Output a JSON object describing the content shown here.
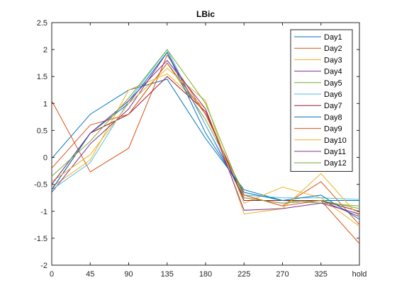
{
  "chart_data": {
    "type": "line",
    "title": "LBic",
    "xlabel": "",
    "ylabel": "",
    "categories": [
      "0",
      "45",
      "90",
      "135",
      "180",
      "225",
      "270",
      "325",
      "hold"
    ],
    "ylim": [
      -2,
      2.5
    ],
    "yticks": [
      "-2",
      "-1.5",
      "-1",
      "-0.5",
      "0",
      "0.5",
      "1",
      "1.5",
      "2",
      "2.5"
    ],
    "grid": false,
    "legend_position": "top-right",
    "series": [
      {
        "name": "Day1",
        "color": "#0072BD",
        "values": [
          -0.02,
          0.8,
          1.25,
          1.45,
          0.35,
          -0.6,
          -0.8,
          -0.8,
          -0.8
        ]
      },
      {
        "name": "Day2",
        "color": "#D95319",
        "values": [
          1.05,
          -0.27,
          0.17,
          1.9,
          0.8,
          -0.7,
          -0.9,
          -0.45,
          -1.25
        ]
      },
      {
        "name": "Day3",
        "color": "#EDB120",
        "values": [
          -0.55,
          -0.05,
          1.25,
          1.55,
          0.9,
          -0.85,
          -0.55,
          -0.75,
          -1.28
        ]
      },
      {
        "name": "Day4",
        "color": "#7E2F8E",
        "values": [
          -0.65,
          0.25,
          0.9,
          1.95,
          0.6,
          -0.75,
          -0.85,
          -0.8,
          -1.1
        ]
      },
      {
        "name": "Day5",
        "color": "#77AC30",
        "values": [
          -0.5,
          0.45,
          0.8,
          1.75,
          0.7,
          -0.65,
          -0.8,
          -0.85,
          -0.9
        ]
      },
      {
        "name": "Day6",
        "color": "#4DBEEE",
        "values": [
          -0.6,
          -0.1,
          1.05,
          2.0,
          0.6,
          -0.7,
          -0.75,
          -0.75,
          -0.78
        ]
      },
      {
        "name": "Day7",
        "color": "#A2142F",
        "values": [
          -0.6,
          0.45,
          0.8,
          1.5,
          0.85,
          -0.8,
          -0.8,
          -0.8,
          -1.0
        ]
      },
      {
        "name": "Day8",
        "color": "#0072BD",
        "values": [
          -0.6,
          0.45,
          1.0,
          1.95,
          0.45,
          -0.65,
          -0.8,
          -0.7,
          -1.15
        ]
      },
      {
        "name": "Day9",
        "color": "#D95319",
        "values": [
          -0.2,
          0.6,
          0.8,
          1.75,
          0.8,
          -0.7,
          -0.9,
          -0.8,
          -1.6
        ]
      },
      {
        "name": "Day10",
        "color": "#EDB120",
        "values": [
          -0.45,
          0.05,
          1.0,
          1.65,
          1.05,
          -1.05,
          -0.95,
          -0.3,
          -1.1
        ]
      },
      {
        "name": "Day11",
        "color": "#7E2F8E",
        "values": [
          -0.5,
          0.45,
          1.05,
          1.8,
          0.9,
          -0.98,
          -0.95,
          -0.85,
          -1.05
        ]
      },
      {
        "name": "Day12",
        "color": "#77AC30",
        "values": [
          -0.35,
          0.3,
          1.1,
          2.0,
          1.0,
          -0.75,
          -0.85,
          -0.8,
          -0.95
        ]
      }
    ]
  }
}
